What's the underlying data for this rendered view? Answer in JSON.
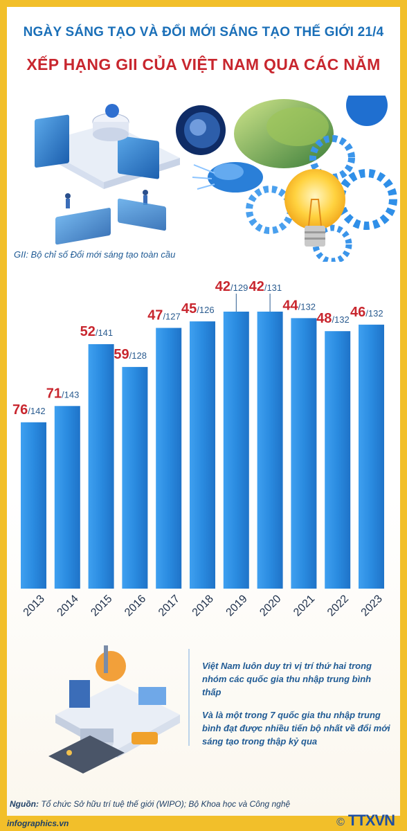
{
  "header": {
    "supertitle": "NGÀY SÁNG TẠO VÀ ĐỔI MỚI SÁNG TẠO THẾ GIỚI 21/4",
    "title": "XẾP HẠNG GII CỦA VIỆT NAM QUA CÁC NĂM"
  },
  "note": "GII: Bộ chỉ số Đổi mới sáng tạo toàn cầu",
  "chart_data": {
    "type": "bar",
    "categories": [
      "2013",
      "2014",
      "2015",
      "2016",
      "2017",
      "2018",
      "2019",
      "2020",
      "2021",
      "2022",
      "2023"
    ],
    "values": [
      76,
      71,
      52,
      59,
      47,
      45,
      42,
      42,
      44,
      48,
      46
    ],
    "totals": [
      142,
      143,
      141,
      128,
      127,
      126,
      129,
      131,
      132,
      132,
      132
    ],
    "labels": [
      "76",
      "71",
      "52",
      "59",
      "47",
      "45",
      "42",
      "42",
      "44",
      "48",
      "46"
    ],
    "total_labels": [
      "/142",
      "/143",
      "/141",
      "/128",
      "/127",
      "/126",
      "/129",
      "/131",
      "/132",
      "/132",
      "/132"
    ],
    "bar_color": "#2a8be0",
    "rank_color": "#c8262e",
    "total_color": "#2a5b8f",
    "grid": false,
    "legend": "none"
  },
  "info": {
    "point1": "Việt Nam luôn duy trì vị trí thứ hai trong nhóm các quốc gia thu nhập trung bình thấp",
    "point2": "Và là một trong 7 quốc gia thu nhập trung bình đạt được nhiều tiến bộ nhất về đổi mới sáng tạo trong thập kỷ qua"
  },
  "source": {
    "label": "Nguồn:",
    "text": " Tổ chức Sở hữu trí tuệ thế giới (WIPO); Bộ Khoa học và Công nghệ"
  },
  "footer": {
    "site": "infographics.vn",
    "logo": "TTXVN",
    "copyright": "©"
  },
  "colors": {
    "frame": "#f2bf2a",
    "title_blue": "#1a6fb8",
    "title_red": "#c8262e"
  }
}
